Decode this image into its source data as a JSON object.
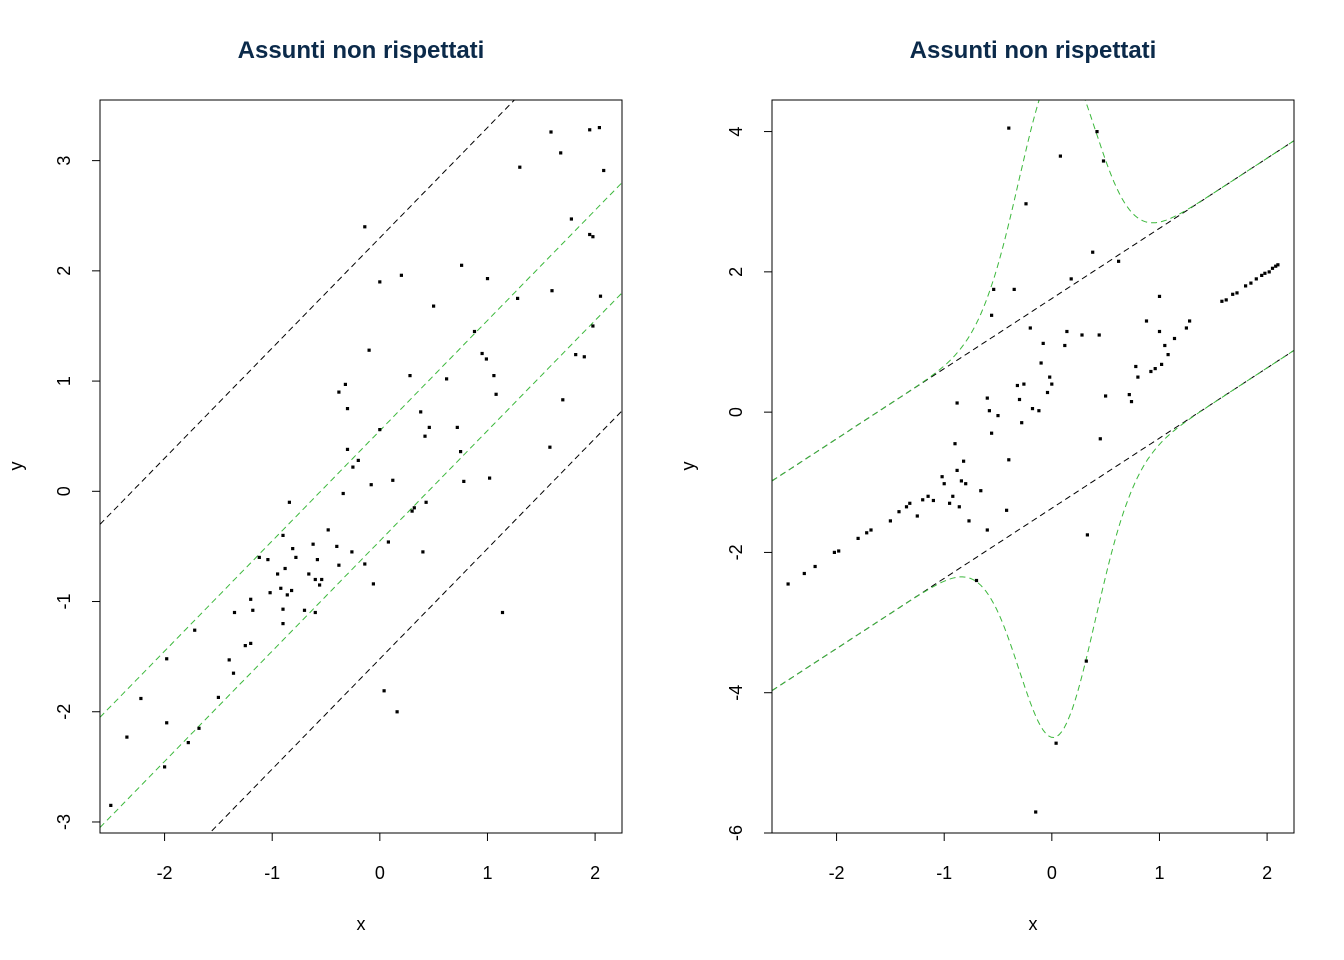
{
  "colors": {
    "background": "#ffffff",
    "title": "#0b2a4a",
    "points": "#000000",
    "black_band": "#000000",
    "green_band": "#3cb83c"
  },
  "chart_data": [
    {
      "type": "scatter",
      "title": "Assunti non rispettati",
      "xlabel": "x",
      "ylabel": "y",
      "xlim": [
        -2.6,
        2.25
      ],
      "ylim": [
        -3.1,
        3.55
      ],
      "xticks": [
        "-2",
        "-1",
        "0",
        "1",
        "2"
      ],
      "yticks": [
        "-3",
        "-2",
        "-1",
        "0",
        "1",
        "2",
        "3"
      ],
      "grid": false,
      "lines": [
        {
          "name": "",
          "style": "dashed",
          "color": "black",
          "intercept": 2.3,
          "slope": 1.0
        },
        {
          "name": "",
          "style": "dashed",
          "color": "green",
          "intercept": 0.55,
          "slope": 1.0
        },
        {
          "name": "",
          "style": "dashed",
          "color": "green",
          "intercept": -0.45,
          "slope": 1.0
        },
        {
          "name": "",
          "style": "dashed",
          "color": "black",
          "intercept": -1.52,
          "slope": 1.0
        }
      ],
      "points": [
        [
          -2.5,
          -2.85
        ],
        [
          -2.35,
          -2.23
        ],
        [
          -2.22,
          -1.88
        ],
        [
          -2.0,
          -2.5
        ],
        [
          -1.98,
          -1.52
        ],
        [
          -1.98,
          -2.1
        ],
        [
          -1.78,
          -2.28
        ],
        [
          -1.72,
          -1.26
        ],
        [
          -1.68,
          -2.15
        ],
        [
          -1.5,
          -1.87
        ],
        [
          -1.4,
          -1.53
        ],
        [
          -1.36,
          -1.65
        ],
        [
          -1.35,
          -1.1
        ],
        [
          -1.25,
          -1.4
        ],
        [
          -1.2,
          -1.38
        ],
        [
          -1.2,
          -0.98
        ],
        [
          -1.18,
          -1.08
        ],
        [
          -1.12,
          -0.6
        ],
        [
          -1.04,
          -0.62
        ],
        [
          -1.02,
          -0.92
        ],
        [
          -0.95,
          -0.75
        ],
        [
          -0.92,
          -0.88
        ],
        [
          -0.9,
          -0.4
        ],
        [
          -0.9,
          -1.07
        ],
        [
          -0.9,
          -1.2
        ],
        [
          -0.88,
          -0.7
        ],
        [
          -0.86,
          -0.94
        ],
        [
          -0.84,
          -0.1
        ],
        [
          -0.82,
          -0.9
        ],
        [
          -0.81,
          -0.52
        ],
        [
          -0.78,
          -0.6
        ],
        [
          -0.7,
          -1.08
        ],
        [
          -0.66,
          -0.75
        ],
        [
          -0.62,
          -0.48
        ],
        [
          -0.6,
          -1.1
        ],
        [
          -0.6,
          -0.8
        ],
        [
          -0.58,
          -0.62
        ],
        [
          -0.56,
          -0.85
        ],
        [
          -0.54,
          -0.8
        ],
        [
          -0.48,
          -0.35
        ],
        [
          -0.4,
          -0.5
        ],
        [
          -0.38,
          -0.67
        ],
        [
          -0.38,
          0.9
        ],
        [
          -0.34,
          -0.02
        ],
        [
          -0.32,
          0.97
        ],
        [
          -0.3,
          0.38
        ],
        [
          -0.3,
          0.75
        ],
        [
          -0.26,
          -0.55
        ],
        [
          -0.25,
          0.22
        ],
        [
          -0.2,
          0.28
        ],
        [
          -0.14,
          2.4
        ],
        [
          -0.14,
          -0.66
        ],
        [
          -0.1,
          1.28
        ],
        [
          -0.08,
          0.06
        ],
        [
          -0.06,
          -0.84
        ],
        [
          0.0,
          0.56
        ],
        [
          0.0,
          1.9
        ],
        [
          0.04,
          -1.81
        ],
        [
          0.08,
          -0.46
        ],
        [
          0.12,
          0.1
        ],
        [
          0.16,
          -2.0
        ],
        [
          0.2,
          1.96
        ],
        [
          0.28,
          1.05
        ],
        [
          0.3,
          -0.18
        ],
        [
          0.32,
          -0.15
        ],
        [
          0.38,
          0.72
        ],
        [
          0.4,
          -0.55
        ],
        [
          0.42,
          0.5
        ],
        [
          0.43,
          -0.1
        ],
        [
          0.46,
          0.58
        ],
        [
          0.5,
          1.68
        ],
        [
          0.62,
          1.02
        ],
        [
          0.72,
          0.58
        ],
        [
          0.75,
          0.36
        ],
        [
          0.76,
          2.05
        ],
        [
          0.78,
          0.09
        ],
        [
          0.88,
          1.45
        ],
        [
          0.95,
          1.25
        ],
        [
          0.99,
          1.2
        ],
        [
          1.0,
          1.93
        ],
        [
          1.02,
          0.12
        ],
        [
          1.06,
          1.05
        ],
        [
          1.08,
          0.88
        ],
        [
          1.14,
          -1.1
        ],
        [
          1.28,
          1.75
        ],
        [
          1.3,
          2.94
        ],
        [
          1.58,
          0.4
        ],
        [
          1.59,
          3.26
        ],
        [
          1.6,
          1.82
        ],
        [
          1.68,
          3.07
        ],
        [
          1.7,
          0.83
        ],
        [
          1.78,
          2.47
        ],
        [
          1.82,
          1.24
        ],
        [
          1.9,
          1.22
        ],
        [
          1.95,
          3.28
        ],
        [
          1.95,
          2.33
        ],
        [
          1.98,
          2.31
        ],
        [
          1.98,
          1.5
        ],
        [
          2.04,
          3.3
        ],
        [
          2.05,
          1.77
        ],
        [
          2.08,
          2.91
        ]
      ]
    },
    {
      "type": "scatter",
      "title": "Assunti non rispettati",
      "xlabel": "x",
      "ylabel": "y",
      "xlim": [
        -2.6,
        2.25
      ],
      "ylim": [
        -6.0,
        4.45
      ],
      "xticks": [
        "-2",
        "-1",
        "0",
        "1",
        "2"
      ],
      "yticks": [
        "-6",
        "-4",
        "-2",
        "0",
        "2",
        "4"
      ],
      "grid": false,
      "lines": [
        {
          "name": "",
          "style": "dashed",
          "color": "black",
          "intercept": 1.62,
          "slope": 1.0
        },
        {
          "name": "",
          "style": "dashed",
          "color": "black",
          "intercept": -1.37,
          "slope": 1.0
        },
        {
          "name": "",
          "style": "dashed",
          "color": "green",
          "intercept": 1.62,
          "slope": 1.0,
          "bump": 3.3,
          "center": 0.05,
          "width": 0.5
        },
        {
          "name": "",
          "style": "dashed",
          "color": "green",
          "intercept": -1.37,
          "slope": 1.0,
          "bump": -3.3,
          "center": 0.05,
          "width": 0.5
        }
      ],
      "points": [
        [
          -2.45,
          -2.45
        ],
        [
          -2.3,
          -2.3
        ],
        [
          -2.2,
          -2.2
        ],
        [
          -2.02,
          -2.0
        ],
        [
          -1.98,
          -1.98
        ],
        [
          -1.8,
          -1.8
        ],
        [
          -1.72,
          -1.72
        ],
        [
          -1.68,
          -1.68
        ],
        [
          -1.5,
          -1.55
        ],
        [
          -1.42,
          -1.42
        ],
        [
          -1.35,
          -1.35
        ],
        [
          -1.32,
          -1.3
        ],
        [
          -1.25,
          -1.48
        ],
        [
          -1.2,
          -1.25
        ],
        [
          -1.15,
          -1.2
        ],
        [
          -1.1,
          -1.26
        ],
        [
          -1.02,
          -0.92
        ],
        [
          -1.0,
          -1.02
        ],
        [
          -0.95,
          -1.3
        ],
        [
          -0.92,
          -1.2
        ],
        [
          -0.9,
          -0.45
        ],
        [
          -0.88,
          -0.83
        ],
        [
          -0.88,
          0.13
        ],
        [
          -0.86,
          -1.35
        ],
        [
          -0.84,
          -0.98
        ],
        [
          -0.82,
          -0.7
        ],
        [
          -0.8,
          -1.02
        ],
        [
          -0.77,
          -1.55
        ],
        [
          -0.7,
          -2.4
        ],
        [
          -0.66,
          -1.12
        ],
        [
          -0.6,
          -1.68
        ],
        [
          -0.6,
          0.2
        ],
        [
          -0.58,
          0.02
        ],
        [
          -0.56,
          -0.3
        ],
        [
          -0.56,
          1.38
        ],
        [
          -0.54,
          1.75
        ],
        [
          -0.5,
          -0.05
        ],
        [
          -0.42,
          -1.4
        ],
        [
          -0.4,
          -0.68
        ],
        [
          -0.4,
          4.05
        ],
        [
          -0.35,
          1.75
        ],
        [
          -0.32,
          0.38
        ],
        [
          -0.3,
          0.18
        ],
        [
          -0.28,
          -0.15
        ],
        [
          -0.26,
          0.4
        ],
        [
          -0.24,
          2.97
        ],
        [
          -0.2,
          1.2
        ],
        [
          -0.18,
          0.05
        ],
        [
          -0.15,
          -5.7
        ],
        [
          -0.12,
          0.02
        ],
        [
          -0.1,
          0.7
        ],
        [
          -0.08,
          0.98
        ],
        [
          -0.04,
          0.28
        ],
        [
          -0.02,
          0.5
        ],
        [
          0.0,
          0.4
        ],
        [
          0.04,
          -4.72
        ],
        [
          0.08,
          3.65
        ],
        [
          0.12,
          0.95
        ],
        [
          0.14,
          1.15
        ],
        [
          0.18,
          1.9
        ],
        [
          0.28,
          1.1
        ],
        [
          0.32,
          -3.55
        ],
        [
          0.33,
          -1.75
        ],
        [
          0.38,
          2.28
        ],
        [
          0.42,
          4.0
        ],
        [
          0.44,
          1.1
        ],
        [
          0.45,
          -0.38
        ],
        [
          0.48,
          3.58
        ],
        [
          0.5,
          0.23
        ],
        [
          0.62,
          2.15
        ],
        [
          0.72,
          0.25
        ],
        [
          0.74,
          0.15
        ],
        [
          0.78,
          0.65
        ],
        [
          0.8,
          0.5
        ],
        [
          0.88,
          1.3
        ],
        [
          0.92,
          0.58
        ],
        [
          0.96,
          0.62
        ],
        [
          1.0,
          1.15
        ],
        [
          1.0,
          1.65
        ],
        [
          1.02,
          0.68
        ],
        [
          1.05,
          0.95
        ],
        [
          1.08,
          0.82
        ],
        [
          1.14,
          1.05
        ],
        [
          1.25,
          1.2
        ],
        [
          1.28,
          1.3
        ],
        [
          1.58,
          1.58
        ],
        [
          1.62,
          1.6
        ],
        [
          1.68,
          1.68
        ],
        [
          1.72,
          1.7
        ],
        [
          1.8,
          1.8
        ],
        [
          1.85,
          1.84
        ],
        [
          1.9,
          1.9
        ],
        [
          1.95,
          1.95
        ],
        [
          1.98,
          1.98
        ],
        [
          2.02,
          2.0
        ],
        [
          2.05,
          2.05
        ],
        [
          2.08,
          2.08
        ],
        [
          2.1,
          2.1
        ]
      ]
    }
  ]
}
